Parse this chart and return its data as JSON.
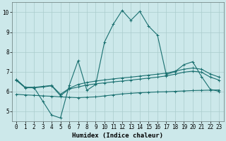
{
  "xlabel": "Humidex (Indice chaleur)",
  "xlim": [
    -0.5,
    23.5
  ],
  "ylim": [
    4.5,
    10.5
  ],
  "yticks": [
    5,
    6,
    7,
    8,
    9,
    10
  ],
  "xticks": [
    0,
    1,
    2,
    3,
    4,
    5,
    6,
    7,
    8,
    9,
    10,
    11,
    12,
    13,
    14,
    15,
    16,
    17,
    18,
    19,
    20,
    21,
    22,
    23
  ],
  "bg_color": "#cce8ea",
  "grid_color": "#aacccc",
  "line_color": "#1a7070",
  "series": [
    [
      6.6,
      6.2,
      6.2,
      5.5,
      4.8,
      4.65,
      6.3,
      7.55,
      6.05,
      6.35,
      8.5,
      9.4,
      10.1,
      9.6,
      10.05,
      9.3,
      8.85,
      6.85,
      7.0,
      7.35,
      7.5,
      6.75,
      6.1,
      6.0
    ],
    [
      6.6,
      6.2,
      6.2,
      6.25,
      6.3,
      5.85,
      6.15,
      6.35,
      6.45,
      6.52,
      6.58,
      6.63,
      6.68,
      6.72,
      6.77,
      6.82,
      6.87,
      6.92,
      7.02,
      7.12,
      7.18,
      7.12,
      6.88,
      6.72
    ],
    [
      6.55,
      6.18,
      6.18,
      6.22,
      6.28,
      5.78,
      6.12,
      6.22,
      6.32,
      6.38,
      6.43,
      6.48,
      6.52,
      6.57,
      6.62,
      6.67,
      6.72,
      6.78,
      6.87,
      6.97,
      7.02,
      6.97,
      6.72,
      6.57
    ],
    [
      5.85,
      5.82,
      5.8,
      5.77,
      5.75,
      5.72,
      5.7,
      5.68,
      5.7,
      5.72,
      5.77,
      5.82,
      5.87,
      5.9,
      5.93,
      5.95,
      5.97,
      5.98,
      6.0,
      6.02,
      6.04,
      6.05,
      6.06,
      6.07
    ]
  ],
  "line_width": 0.8,
  "marker": "+",
  "markersize": 3.5,
  "markeredgewidth": 0.7,
  "tick_fontsize": 5.5,
  "xlabel_fontsize": 6.5
}
